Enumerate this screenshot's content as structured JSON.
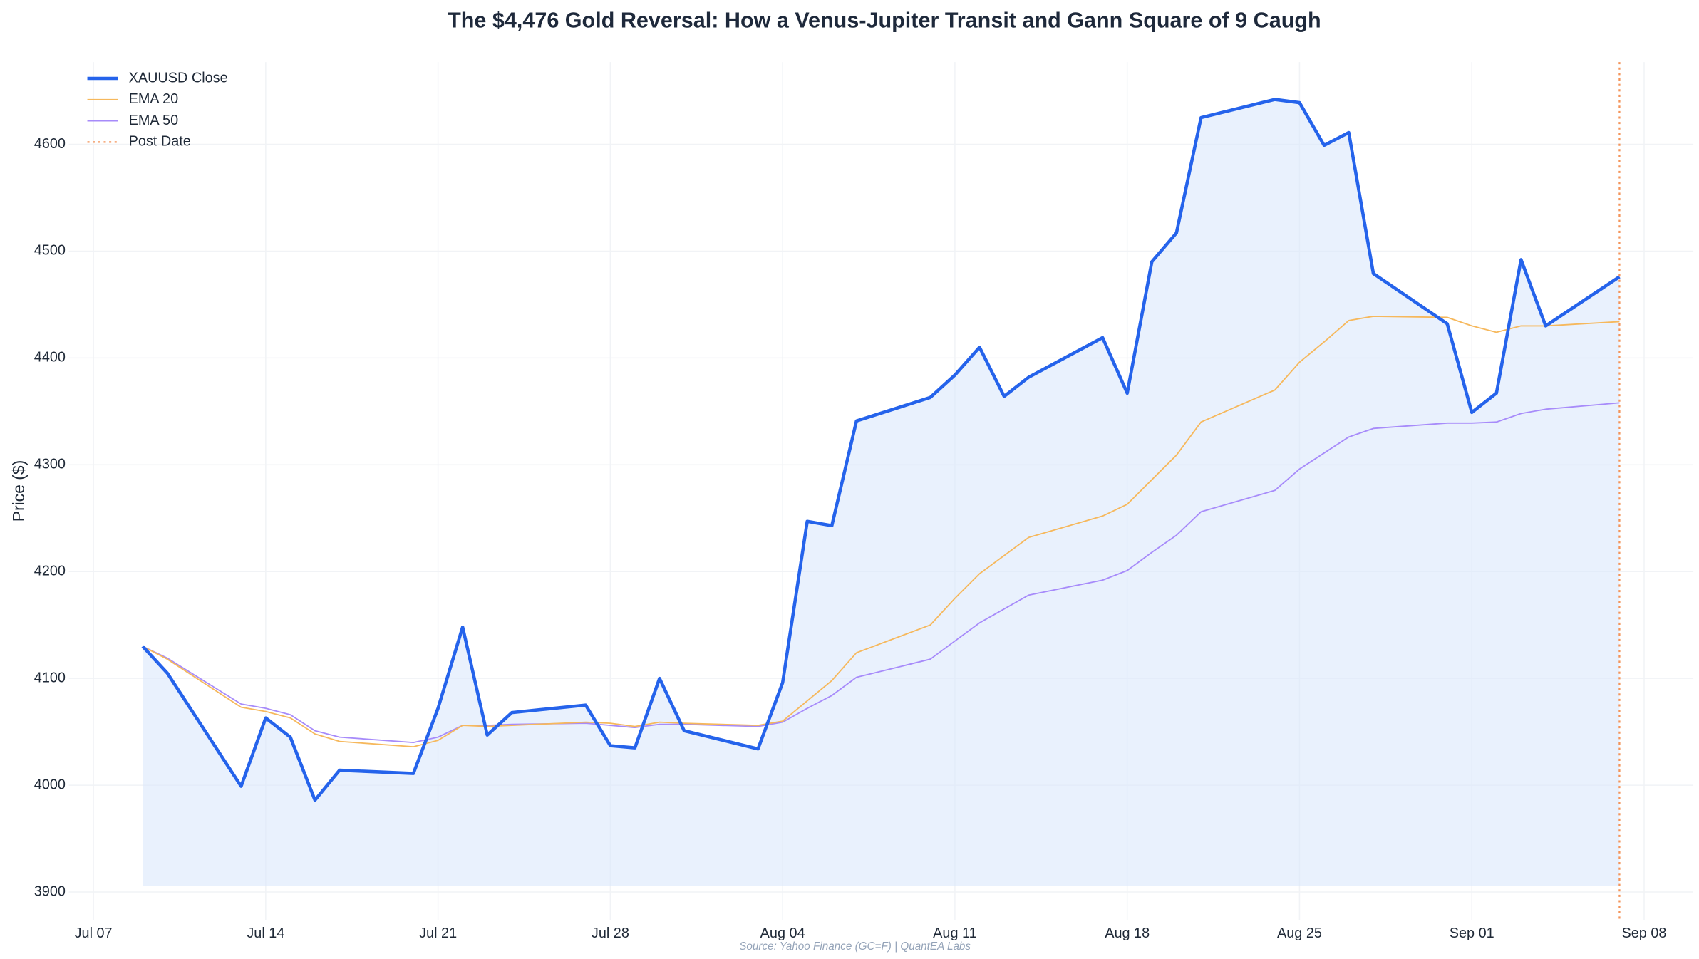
{
  "chart_data": {
    "type": "line",
    "title": "The $4,476 Gold Reversal: How a Venus-Jupiter Transit and Gann Square of 9 Caugh",
    "ylabel": "Price ($)",
    "source": "Source: Yahoo Finance (GC=F) | QuantEA Labs",
    "x": [
      "Jul 09",
      "Jul 10",
      "Jul 13",
      "Jul 14",
      "Jul 15",
      "Jul 16",
      "Jul 17",
      "Jul 20",
      "Jul 21",
      "Jul 22",
      "Jul 23",
      "Jul 24",
      "Jul 27",
      "Jul 28",
      "Jul 29",
      "Jul 30",
      "Jul 31",
      "Aug 03",
      "Aug 04",
      "Aug 05",
      "Aug 06",
      "Aug 07",
      "Aug 10",
      "Aug 11",
      "Aug 12",
      "Aug 13",
      "Aug 14",
      "Aug 17",
      "Aug 18",
      "Aug 19",
      "Aug 20",
      "Aug 21",
      "Aug 24",
      "Aug 25",
      "Aug 26",
      "Aug 27",
      "Aug 28",
      "Aug 31",
      "Sep 01",
      "Sep 02",
      "Sep 03",
      "Sep 04",
      "Sep 07"
    ],
    "series": [
      {
        "name": "XAUUSD Close",
        "color": "#2563eb",
        "width": 3,
        "values": [
          4130,
          4105,
          3999,
          4063,
          4045,
          3986,
          4014,
          4011,
          4072,
          4148,
          4047,
          4068,
          4075,
          4037,
          4035,
          4100,
          4051,
          4034,
          4096,
          4247,
          4243,
          4341,
          4363,
          4384,
          4410,
          4364,
          4382,
          4419,
          4367,
          4490,
          4517,
          4625,
          4642,
          4639,
          4599,
          4611,
          4479,
          4432,
          4349,
          4367,
          4492,
          4430,
          4476
        ]
      },
      {
        "name": "EMA 20",
        "color": "#f6b85c",
        "width": 1.2,
        "values": [
          4130,
          4118,
          4073,
          4069,
          4063,
          4048,
          4041,
          4036,
          4042,
          4056,
          4055,
          4056,
          4059,
          4058,
          4055,
          4059,
          4058,
          4056,
          4060,
          4079,
          4098,
          4124,
          4150,
          4175,
          4198,
          4215,
          4232,
          4252,
          4263,
          4286,
          4309,
          4340,
          4370,
          4396,
          4415,
          4435,
          4439,
          4438,
          4430,
          4424,
          4430,
          4430,
          4434
        ]
      },
      {
        "name": "EMA 50",
        "color": "#a78bfa",
        "width": 1.2,
        "values": [
          4130,
          4119,
          4076,
          4072,
          4066,
          4051,
          4045,
          4040,
          4045,
          4056,
          4056,
          4057,
          4058,
          4056,
          4054,
          4057,
          4057,
          4055,
          4059,
          4072,
          4084,
          4101,
          4118,
          4135,
          4152,
          4165,
          4178,
          4192,
          4201,
          4218,
          4234,
          4256,
          4276,
          4296,
          4311,
          4326,
          4334,
          4339,
          4339,
          4340,
          4348,
          4352,
          4358
        ]
      }
    ],
    "fill_baseline": 3906,
    "fill_color": "#dbe7fb",
    "vlines": [
      {
        "name": "Post Date",
        "x": "Sep 07",
        "color": "#f4945a"
      }
    ],
    "xlim": [
      "Jul 06",
      "Sep 10"
    ],
    "xticks": [
      "Jul 07",
      "Jul 14",
      "Jul 21",
      "Jul 28",
      "Aug 04",
      "Aug 11",
      "Aug 18",
      "Aug 25",
      "Sep 01",
      "Sep 08"
    ],
    "ylim": [
      3874,
      4677
    ],
    "yticks": [
      3900,
      4000,
      4100,
      4200,
      4300,
      4400,
      4500,
      4600
    ],
    "grid": true,
    "legend": "upper-left"
  }
}
